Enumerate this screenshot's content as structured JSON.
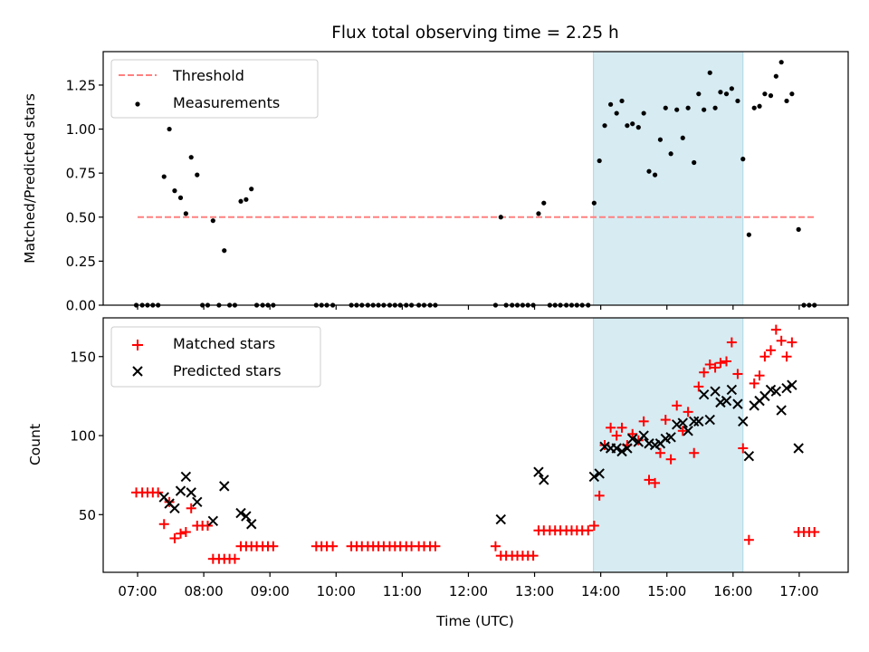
{
  "chart_data": [
    {
      "type": "scatter",
      "title": "Flux total observing time = 2.25 h",
      "xlabel": "",
      "ylabel": "Matched/Predicted stars",
      "xlim": [
        6.48,
        17.74
      ],
      "ylim": [
        0.0,
        1.44
      ],
      "yticks": [
        0.0,
        0.25,
        0.5,
        0.75,
        1.0,
        1.25
      ],
      "ytick_labels": [
        "0.00",
        "0.25",
        "0.50",
        "0.75",
        "1.00",
        "1.25"
      ],
      "xticks": [
        7,
        8,
        9,
        10,
        11,
        12,
        13,
        14,
        15,
        16,
        17
      ],
      "grid": false,
      "legend": {
        "position": "top-left",
        "entries": [
          "Threshold",
          "Measurements"
        ]
      },
      "shaded_span": {
        "x": [
          13.89,
          16.15
        ],
        "color": "#add8e6"
      },
      "threshold": {
        "name": "Threshold",
        "y": 0.5,
        "x": [
          7.0,
          17.25
        ],
        "color": "#ff8080",
        "style": "dashed"
      },
      "series": [
        {
          "name": "Measurements",
          "marker": "dot",
          "color": "#000000",
          "x": [
            6.98,
            7.07,
            7.15,
            7.23,
            7.31,
            7.4,
            7.48,
            7.56,
            7.65,
            7.73,
            7.81,
            7.9,
            7.98,
            8.06,
            8.14,
            8.23,
            8.31,
            8.39,
            8.47,
            8.56,
            8.64,
            8.72,
            8.8,
            8.89,
            8.97,
            9.05,
            9.7,
            9.78,
            9.86,
            9.95,
            10.23,
            10.31,
            10.39,
            10.48,
            10.56,
            10.64,
            10.72,
            10.81,
            10.89,
            10.97,
            11.06,
            11.14,
            11.25,
            11.33,
            11.42,
            11.5,
            12.41,
            12.49,
            12.57,
            12.66,
            12.74,
            12.82,
            12.9,
            12.98,
            13.06,
            13.14,
            13.23,
            13.31,
            13.39,
            13.48,
            13.56,
            13.64,
            13.72,
            13.81,
            13.9,
            13.98,
            14.06,
            14.15,
            14.24,
            14.32,
            14.4,
            14.48,
            14.57,
            14.65,
            14.73,
            14.82,
            14.9,
            14.98,
            15.06,
            15.15,
            15.24,
            15.32,
            15.41,
            15.48,
            15.56,
            15.65,
            15.73,
            15.81,
            15.9,
            15.98,
            16.07,
            16.15,
            16.24,
            16.32,
            16.4,
            16.48,
            16.57,
            16.65,
            16.73,
            16.81,
            16.89,
            16.99,
            17.07,
            17.15,
            17.23
          ],
          "y": [
            0,
            0,
            0,
            0,
            0,
            0.73,
            1.0,
            0.65,
            0.61,
            0.52,
            0.84,
            0.74,
            0,
            0,
            0.48,
            0,
            0.31,
            0,
            0,
            0.59,
            0.6,
            0.66,
            0,
            0,
            0,
            0,
            0,
            0,
            0,
            0,
            0,
            0,
            0,
            0,
            0,
            0,
            0,
            0,
            0,
            0,
            0,
            0,
            0,
            0,
            0,
            0,
            0,
            0.5,
            0,
            0,
            0,
            0,
            0,
            0,
            0.52,
            0.58,
            0,
            0,
            0,
            0,
            0,
            0,
            0,
            0,
            0.58,
            0.82,
            1.02,
            1.14,
            1.09,
            1.16,
            1.02,
            1.03,
            1.01,
            1.09,
            0.76,
            0.74,
            0.94,
            1.12,
            0.86,
            1.11,
            0.95,
            1.12,
            0.81,
            1.2,
            1.11,
            1.32,
            1.12,
            1.21,
            1.2,
            1.23,
            1.16,
            0.83,
            0.4,
            1.12,
            1.13,
            1.2,
            1.19,
            1.3,
            1.38,
            1.16,
            1.2,
            0.43,
            0,
            0,
            0
          ]
        }
      ]
    },
    {
      "type": "scatter",
      "title": "",
      "xlabel": "Time (UTC)",
      "ylabel": "Count",
      "xlim": [
        6.48,
        17.74
      ],
      "ylim": [
        13.5,
        174.5
      ],
      "yticks": [
        50,
        100,
        150
      ],
      "ytick_labels": [
        "50",
        "100",
        "150"
      ],
      "xticks": [
        7,
        8,
        9,
        10,
        11,
        12,
        13,
        14,
        15,
        16,
        17
      ],
      "xtick_labels": [
        "07:00",
        "08:00",
        "09:00",
        "10:00",
        "11:00",
        "12:00",
        "13:00",
        "14:00",
        "15:00",
        "16:00",
        "17:00"
      ],
      "grid": false,
      "legend": {
        "position": "top-left",
        "entries": [
          "Matched stars",
          "Predicted stars"
        ]
      },
      "shaded_span": {
        "x": [
          13.89,
          16.15
        ],
        "color": "#add8e6"
      },
      "series": [
        {
          "name": "Matched stars",
          "marker": "plus",
          "color": "#ff0000",
          "x": [
            6.98,
            7.07,
            7.15,
            7.23,
            7.31,
            7.4,
            7.48,
            7.56,
            7.65,
            7.73,
            7.81,
            7.9,
            7.98,
            8.06,
            8.14,
            8.23,
            8.31,
            8.39,
            8.47,
            8.56,
            8.64,
            8.72,
            8.8,
            8.89,
            8.97,
            9.05,
            9.7,
            9.78,
            9.86,
            9.95,
            10.23,
            10.31,
            10.39,
            10.48,
            10.56,
            10.64,
            10.72,
            10.81,
            10.89,
            10.97,
            11.06,
            11.14,
            11.25,
            11.33,
            11.42,
            11.5,
            12.41,
            12.49,
            12.57,
            12.66,
            12.74,
            12.82,
            12.9,
            12.98,
            13.06,
            13.14,
            13.23,
            13.31,
            13.39,
            13.48,
            13.56,
            13.64,
            13.72,
            13.81,
            13.9,
            13.98,
            14.06,
            14.15,
            14.24,
            14.32,
            14.4,
            14.48,
            14.57,
            14.65,
            14.73,
            14.82,
            14.9,
            14.98,
            15.06,
            15.15,
            15.24,
            15.32,
            15.41,
            15.48,
            15.56,
            15.65,
            15.73,
            15.81,
            15.9,
            15.98,
            16.07,
            16.15,
            16.24,
            16.32,
            16.4,
            16.48,
            16.57,
            16.65,
            16.73,
            16.81,
            16.89,
            16.99,
            17.07,
            17.15,
            17.23
          ],
          "y": [
            64,
            64,
            64,
            64,
            64,
            44,
            58,
            35,
            38,
            39,
            54,
            43,
            43,
            43,
            22,
            22,
            22,
            22,
            22,
            30,
            30,
            30,
            30,
            30,
            30,
            30,
            30,
            30,
            30,
            30,
            30,
            30,
            30,
            30,
            30,
            30,
            30,
            30,
            30,
            30,
            30,
            30,
            30,
            30,
            30,
            30,
            30,
            24,
            24,
            24,
            24,
            24,
            24,
            24,
            40,
            40,
            40,
            40,
            40,
            40,
            40,
            40,
            40,
            40,
            43,
            62,
            94,
            105,
            100,
            105,
            94,
            101,
            97,
            109,
            72,
            70,
            89,
            110,
            85,
            119,
            103,
            115,
            89,
            131,
            140,
            145,
            143,
            146,
            147,
            159,
            139,
            92,
            34,
            133,
            138,
            150,
            154,
            167,
            160,
            150,
            159,
            39,
            39,
            39,
            39
          ]
        },
        {
          "name": "Predicted stars",
          "marker": "x",
          "color": "#000000",
          "x": [
            7.4,
            7.48,
            7.56,
            7.65,
            7.73,
            7.81,
            7.9,
            8.14,
            8.31,
            8.56,
            8.64,
            8.72,
            12.49,
            13.06,
            13.14,
            13.9,
            13.98,
            14.06,
            14.15,
            14.24,
            14.32,
            14.4,
            14.48,
            14.57,
            14.65,
            14.73,
            14.82,
            14.9,
            14.98,
            15.06,
            15.15,
            15.24,
            15.32,
            15.41,
            15.48,
            15.56,
            15.65,
            15.73,
            15.81,
            15.9,
            15.98,
            16.07,
            16.15,
            16.24,
            16.32,
            16.4,
            16.48,
            16.57,
            16.65,
            16.73,
            16.81,
            16.89,
            16.99
          ],
          "y": [
            61,
            57,
            54,
            65,
            74,
            64,
            58,
            46,
            68,
            51,
            49,
            44,
            47,
            77,
            72,
            74,
            76,
            93,
            92,
            92,
            90,
            92,
            98,
            96,
            100,
            95,
            94,
            95,
            98,
            99,
            107,
            108,
            103,
            109,
            109,
            126,
            110,
            128,
            121,
            122,
            129,
            120,
            109,
            87,
            119,
            122,
            125,
            129,
            128,
            116,
            130,
            132,
            92
          ]
        }
      ]
    }
  ]
}
